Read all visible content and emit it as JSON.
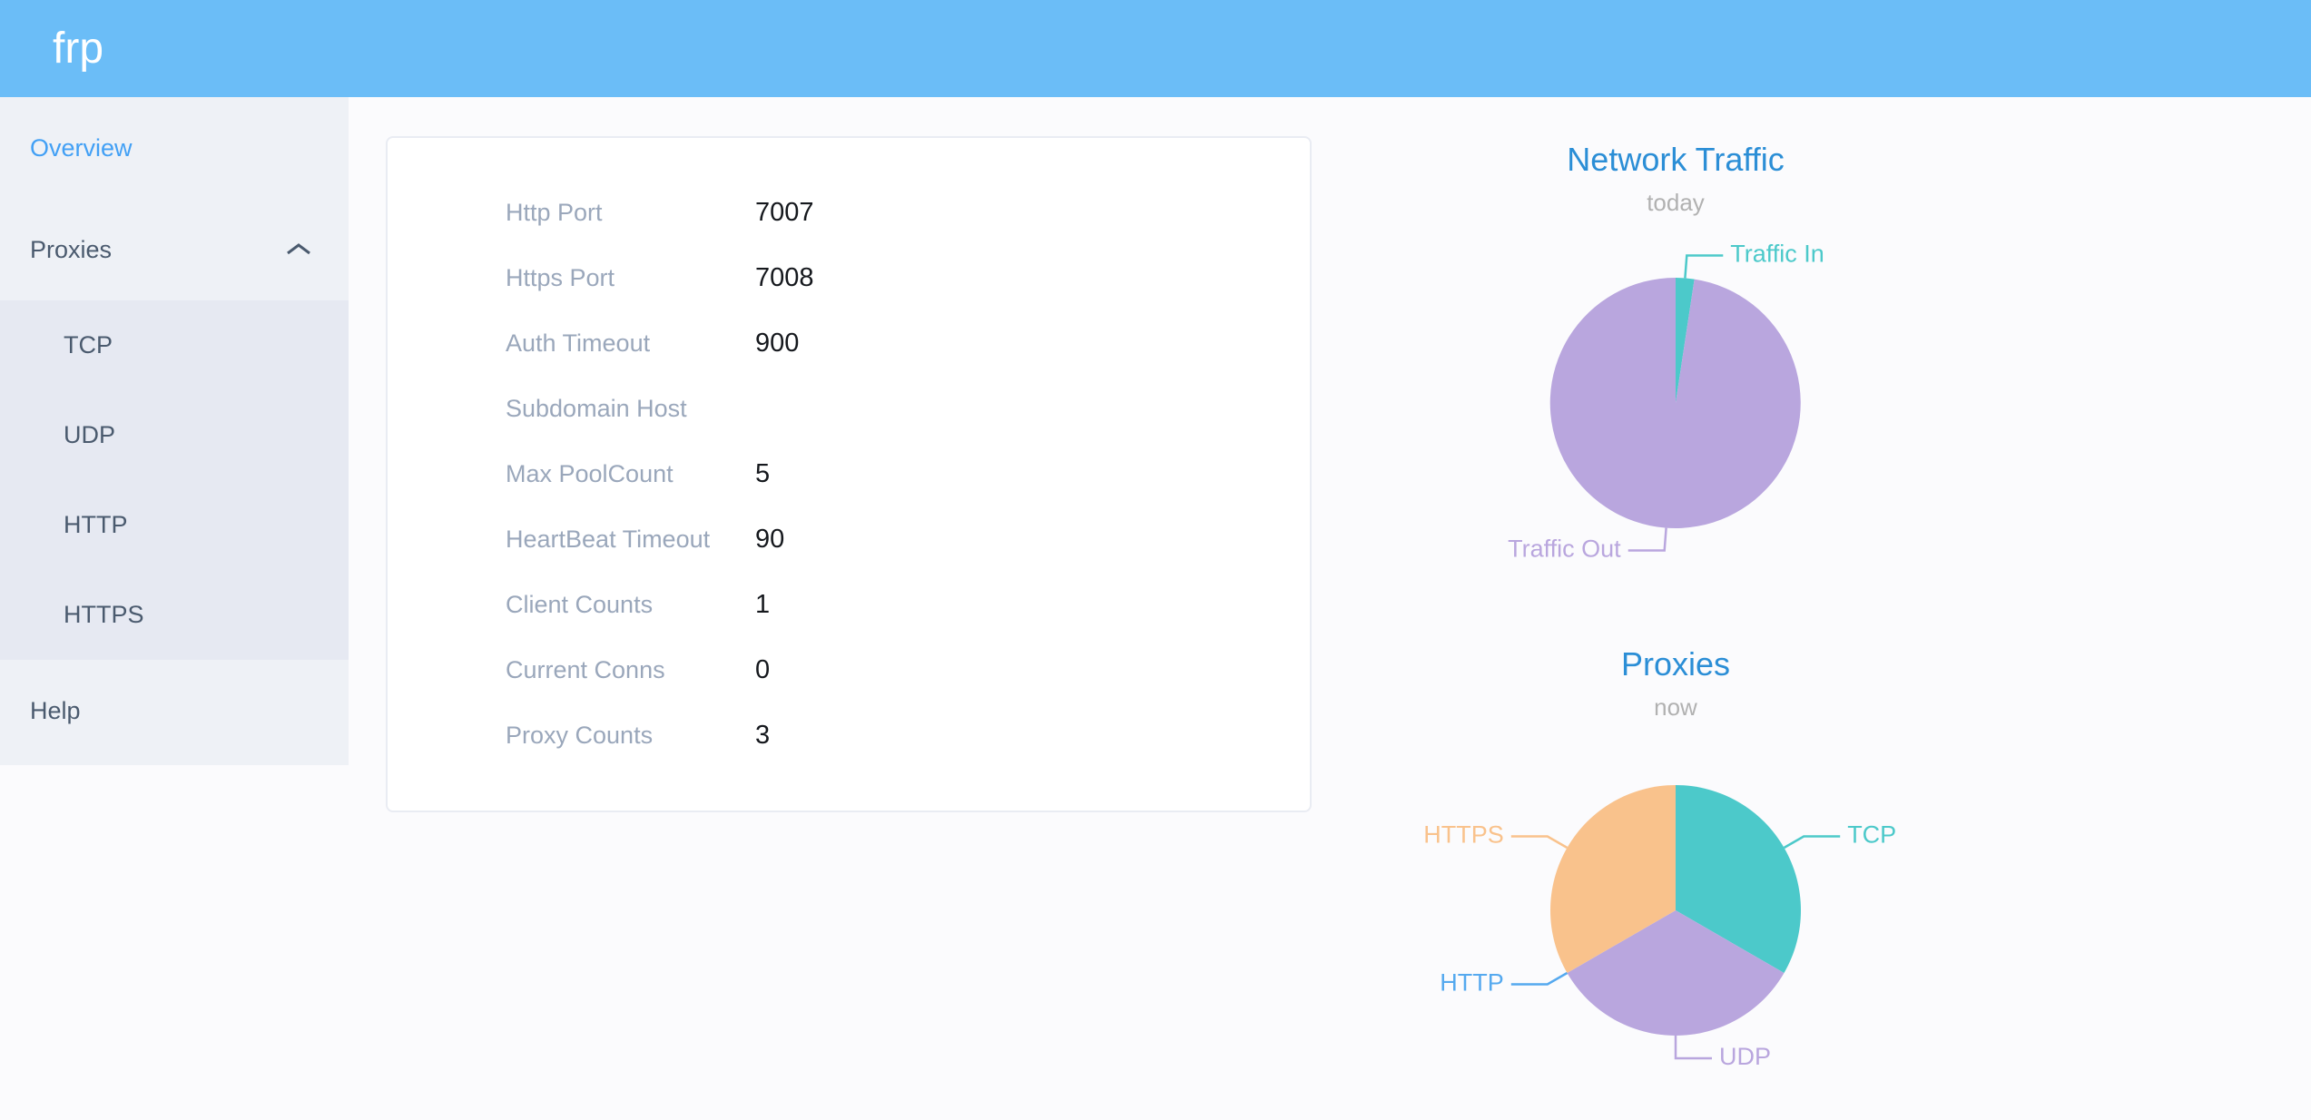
{
  "app": {
    "logo": "frp"
  },
  "colors": {
    "header_bg": "#6bbdf7",
    "sidebar_bg": "#eef1f6",
    "submenu_bg": "#e6e9f2",
    "active_menu_text": "#42a0f5",
    "menu_text": "#4a5a6e",
    "chart_title": "#2b8ed6",
    "teal": "#4cc9ca",
    "purple": "#b9a6de",
    "blue": "#55a9ef",
    "orange": "#f9c28c"
  },
  "sidebar": {
    "items": [
      {
        "label": "Overview",
        "active": true
      },
      {
        "label": "Proxies",
        "expanded": true,
        "children": [
          {
            "label": "TCP"
          },
          {
            "label": "UDP"
          },
          {
            "label": "HTTP"
          },
          {
            "label": "HTTPS"
          }
        ]
      },
      {
        "label": "Help"
      }
    ]
  },
  "server_info": {
    "rows": [
      {
        "label": "Http Port",
        "value": "7007"
      },
      {
        "label": "Https Port",
        "value": "7008"
      },
      {
        "label": "Auth Timeout",
        "value": "900"
      },
      {
        "label": "Subdomain Host",
        "value": ""
      },
      {
        "label": "Max PoolCount",
        "value": "5"
      },
      {
        "label": "HeartBeat Timeout",
        "value": "90"
      },
      {
        "label": "Client Counts",
        "value": "1"
      },
      {
        "label": "Current Conns",
        "value": "0"
      },
      {
        "label": "Proxy Counts",
        "value": "3"
      }
    ]
  },
  "chart_data": [
    {
      "type": "pie",
      "title": "Network Traffic",
      "subtitle": "today",
      "legend_position": "callout-labels",
      "unit": "% of total (estimated from arc angles, no numeric labels shown)",
      "series": [
        {
          "name": "Traffic In",
          "value": 2.4,
          "color": "#4cc9ca"
        },
        {
          "name": "Traffic Out",
          "value": 97.6,
          "color": "#b9a6de"
        }
      ]
    },
    {
      "type": "pie",
      "title": "Proxies",
      "subtitle": "now",
      "legend_position": "callout-labels",
      "unit": "proxy count",
      "series": [
        {
          "name": "TCP",
          "value": 1,
          "color": "#4cc9ca"
        },
        {
          "name": "UDP",
          "value": 1,
          "color": "#b9a6de"
        },
        {
          "name": "HTTP",
          "value": 0,
          "color": "#55a9ef"
        },
        {
          "name": "HTTPS",
          "value": 1,
          "color": "#f9c28c"
        }
      ]
    }
  ]
}
